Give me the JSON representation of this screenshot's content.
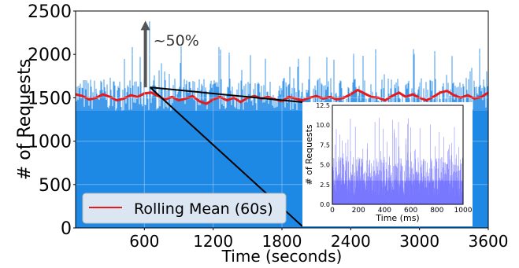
{
  "chart_data": [
    {
      "type": "area",
      "xlabel": "Time (seconds)",
      "ylabel": "# of Requests",
      "xlim": [
        0,
        3600
      ],
      "ylim": [
        0,
        2500
      ],
      "xticks": [
        "600",
        "1200",
        "1800",
        "2400",
        "3000",
        "3600"
      ],
      "yticks": [
        "0",
        "500",
        "1000",
        "1500",
        "2000",
        "2500"
      ],
      "grid": true,
      "legend": {
        "position": "bottom-left",
        "entries": [
          "Rolling Mean (60s)"
        ]
      },
      "annotation": {
        "text": "~50%",
        "x": 650,
        "y_from": 1620,
        "y_to": 2370
      },
      "series": [
        {
          "kind": "raw",
          "color": "#1f88e5",
          "baseline": 1500,
          "typical_range": [
            1350,
            1800
          ],
          "peak": 2380
        },
        {
          "kind": "rolling",
          "name": "Rolling Mean (60s)",
          "color": "#e41a1c",
          "x": [
            0,
            60,
            120,
            180,
            240,
            300,
            360,
            420,
            480,
            540,
            600,
            660,
            720,
            780,
            840,
            900,
            960,
            1020,
            1080,
            1140,
            1200,
            1260,
            1320,
            1380,
            1440,
            1500,
            1560,
            1620,
            1680,
            1740,
            1800,
            1860,
            1920,
            1980,
            2040,
            2100,
            2160,
            2220,
            2280,
            2340,
            2400,
            2460,
            2520,
            2580,
            2640,
            2700,
            2760,
            2820,
            2880,
            2940,
            3000,
            3060,
            3120,
            3180,
            3240,
            3300,
            3360,
            3420,
            3480,
            3540,
            3600
          ],
          "y": [
            1540,
            1520,
            1480,
            1500,
            1540,
            1510,
            1470,
            1490,
            1530,
            1510,
            1550,
            1560,
            1520,
            1480,
            1510,
            1470,
            1490,
            1520,
            1460,
            1430,
            1480,
            1510,
            1470,
            1500,
            1450,
            1500,
            1520,
            1490,
            1510,
            1480,
            1460,
            1510,
            1490,
            1470,
            1500,
            1520,
            1490,
            1510,
            1480,
            1500,
            1540,
            1590,
            1550,
            1510,
            1500,
            1470,
            1520,
            1560,
            1510,
            1540,
            1500,
            1470,
            1510,
            1560,
            1580,
            1530,
            1500,
            1530,
            1490,
            1510,
            1560
          ]
        }
      ]
    },
    {
      "type": "bar",
      "inset": true,
      "xlabel": "Time (ms)",
      "ylabel": "# of Requests",
      "xlim": [
        0,
        1000
      ],
      "ylim": [
        0,
        12.5
      ],
      "xticks": [
        "0",
        "200",
        "400",
        "600",
        "800",
        "1000"
      ],
      "yticks": [
        "0.0",
        "2.5",
        "5.0",
        "7.5",
        "10.0",
        "12.5"
      ],
      "color": "#3333ff",
      "typical_range": [
        1,
        6
      ],
      "peak": 11
    }
  ]
}
